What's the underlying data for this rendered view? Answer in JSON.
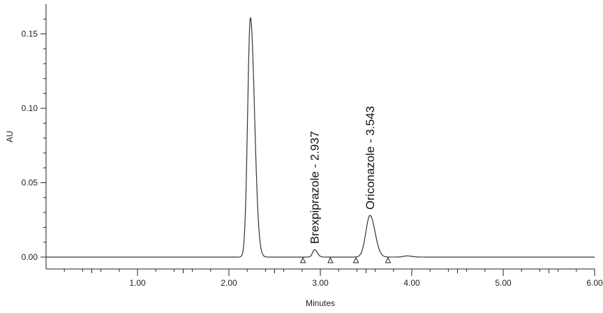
{
  "chart_data": {
    "type": "line",
    "xlabel": "Minutes",
    "ylabel": "AU",
    "xlim": [
      0.0,
      6.0
    ],
    "ylim": [
      -0.008,
      0.17
    ],
    "x_ticks": [
      {
        "value": 1.0,
        "label": "1.00"
      },
      {
        "value": 2.0,
        "label": "2.00"
      },
      {
        "value": 3.0,
        "label": "3.00"
      },
      {
        "value": 4.0,
        "label": "4.00"
      },
      {
        "value": 5.0,
        "label": "5.00"
      },
      {
        "value": 6.0,
        "label": "6.00"
      }
    ],
    "y_ticks": [
      {
        "value": 0.0,
        "label": "0.00"
      },
      {
        "value": 0.05,
        "label": "0.05"
      },
      {
        "value": 0.1,
        "label": "0.10"
      },
      {
        "value": 0.15,
        "label": "0.15"
      }
    ],
    "grid": false,
    "series": [
      {
        "line_color": "#333333",
        "peaks": [
          {
            "rt": 2.235,
            "height": 0.161,
            "sigma_left": 0.03,
            "sigma_right": 0.045
          },
          {
            "rt": 2.937,
            "height": 0.005,
            "sigma_left": 0.022,
            "sigma_right": 0.03
          },
          {
            "rt": 3.543,
            "height": 0.028,
            "sigma_left": 0.045,
            "sigma_right": 0.055
          },
          {
            "rt": 3.95,
            "height": 0.0008,
            "sigma_left": 0.04,
            "sigma_right": 0.05
          }
        ],
        "baseline": 0.0
      }
    ],
    "annotations": [
      {
        "text": "Brexpiprazole - 2.937",
        "x": 2.937,
        "y": 0.007
      },
      {
        "text": "Oriconazole - 3.543",
        "x": 3.543,
        "y": 0.03
      }
    ],
    "integration_markers": [
      2.81,
      3.11,
      3.39,
      3.74
    ]
  }
}
